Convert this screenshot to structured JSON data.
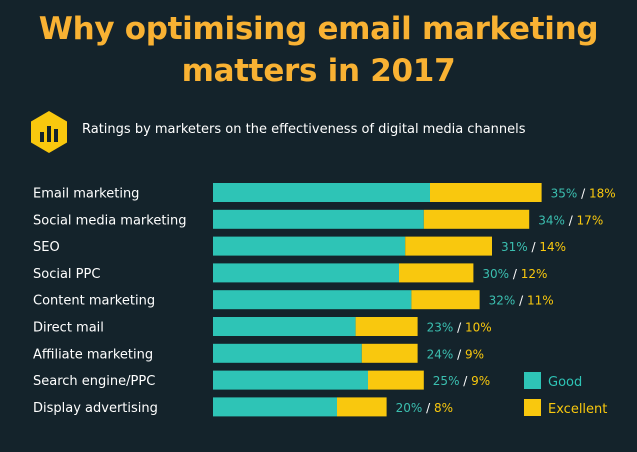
{
  "header": {
    "title_line1": "Why optimising email marketing",
    "title_line2": "matters in 2017",
    "subtitle": "Ratings by marketers on the effectiveness of digital media channels"
  },
  "colors": {
    "good": "#2ec4b6",
    "excellent": "#f9c80e",
    "background": "#14232b",
    "title": "#f9b233"
  },
  "icons": {
    "badge": "bar-chart-hexagon-icon"
  },
  "chart_data": {
    "type": "bar",
    "orientation": "horizontal",
    "stacked": true,
    "categories": [
      "Email marketing",
      "Social media marketing",
      "SEO",
      "Social PPC",
      "Content marketing",
      "Direct mail",
      "Affiliate marketing",
      "Search engine/PPC",
      "Display advertising"
    ],
    "series": [
      {
        "name": "Good",
        "values": [
          35,
          34,
          31,
          30,
          32,
          23,
          24,
          25,
          20
        ]
      },
      {
        "name": "Excellent",
        "values": [
          18,
          17,
          14,
          12,
          11,
          10,
          9,
          9,
          8
        ]
      }
    ],
    "unit": "%",
    "legend": "bottom-right"
  }
}
